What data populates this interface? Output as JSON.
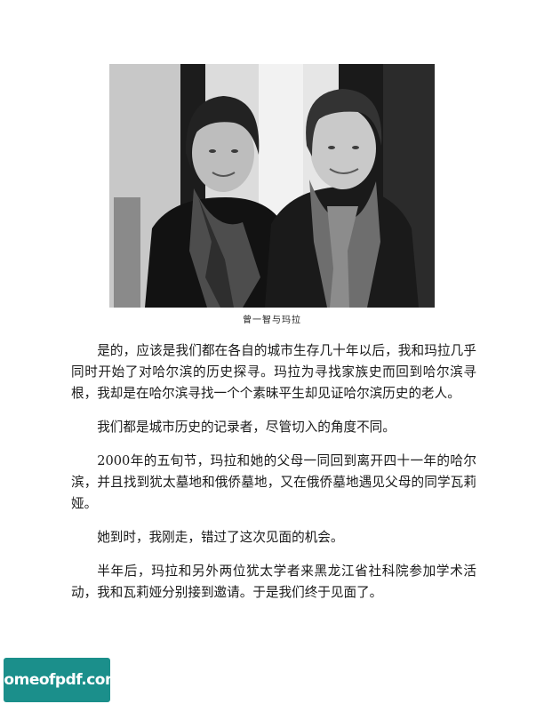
{
  "photo": {
    "subjects": [
      "woman-left",
      "woman-right"
    ]
  },
  "caption": "曾一智与玛拉",
  "paragraphs": [
    "是的，应该是我们都在各自的城市生存几十年以后，我和玛拉几乎同时开始了对哈尔滨的历史探寻。玛拉为寻找家族史而回到哈尔滨寻根，我却是在哈尔滨寻找一个个素昧平生却见证哈尔滨历史的老人。",
    "我们都是城市历史的记录者，尽管切入的角度不同。",
    "2000年的五旬节，玛拉和她的父母一同回到离开四十一年的哈尔滨，并且找到犹太墓地和俄侨墓地，又在俄侨墓地遇见父母的同学瓦莉娅。",
    "她到时，我刚走，错过了这次见面的机会。",
    "半年后，玛拉和另外两位犹太学者来黑龙江省社科院参加学术活动，我和瓦莉娅分别接到邀请。于是我们终于见面了。"
  ],
  "watermark": "homeofpdf.com",
  "colors": {
    "watermark_bg": "#1b8f8b",
    "watermark_text": "#ffffff"
  }
}
